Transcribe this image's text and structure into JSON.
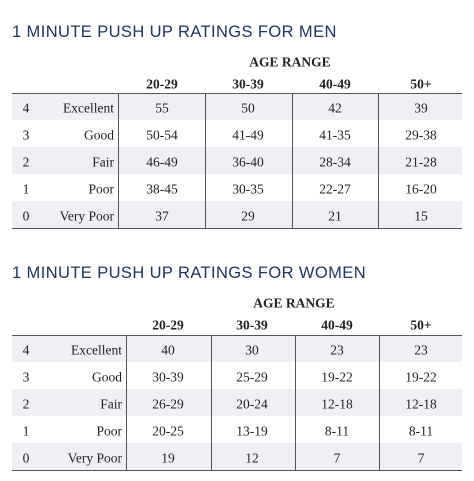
{
  "tables": [
    {
      "title": "1 MINUTE PUSH UP RATINGS FOR MEN",
      "group_header": "AGE RANGE",
      "columns": [
        "20-29",
        "30-39",
        "40-49",
        "50+"
      ],
      "rows": [
        {
          "level": "4",
          "rating": "Excellent",
          "values": [
            "55",
            "50",
            "42",
            "39"
          ]
        },
        {
          "level": "3",
          "rating": "Good",
          "values": [
            "50-54",
            "41-49",
            "41-35",
            "29-38"
          ]
        },
        {
          "level": "2",
          "rating": "Fair",
          "values": [
            "46-49",
            "36-40",
            "28-34",
            "21-28"
          ]
        },
        {
          "level": "1",
          "rating": "Poor",
          "values": [
            "38-45",
            "30-35",
            "22-27",
            "16-20"
          ]
        },
        {
          "level": "0",
          "rating": "Very Poor",
          "values": [
            "37",
            "29",
            "21",
            "15"
          ]
        }
      ]
    },
    {
      "title": "1 MINUTE PUSH UP RATINGS FOR WOMEN",
      "group_header": "AGE RANGE",
      "columns": [
        "20-29",
        "30-39",
        "40-49",
        "50+"
      ],
      "rows": [
        {
          "level": "4",
          "rating": "Excellent",
          "values": [
            "40",
            "30",
            "23",
            "23"
          ]
        },
        {
          "level": "3",
          "rating": "Good",
          "values": [
            "30-39",
            "25-29",
            "19-22",
            "19-22"
          ]
        },
        {
          "level": "2",
          "rating": "Fair",
          "values": [
            "26-29",
            "20-24",
            "12-18",
            "12-18"
          ]
        },
        {
          "level": "1",
          "rating": "Poor",
          "values": [
            "20-25",
            "13-19",
            "8-11",
            "8-11"
          ]
        },
        {
          "level": "0",
          "rating": "Very Poor",
          "values": [
            "19",
            "12",
            "7",
            "7"
          ]
        }
      ]
    }
  ]
}
